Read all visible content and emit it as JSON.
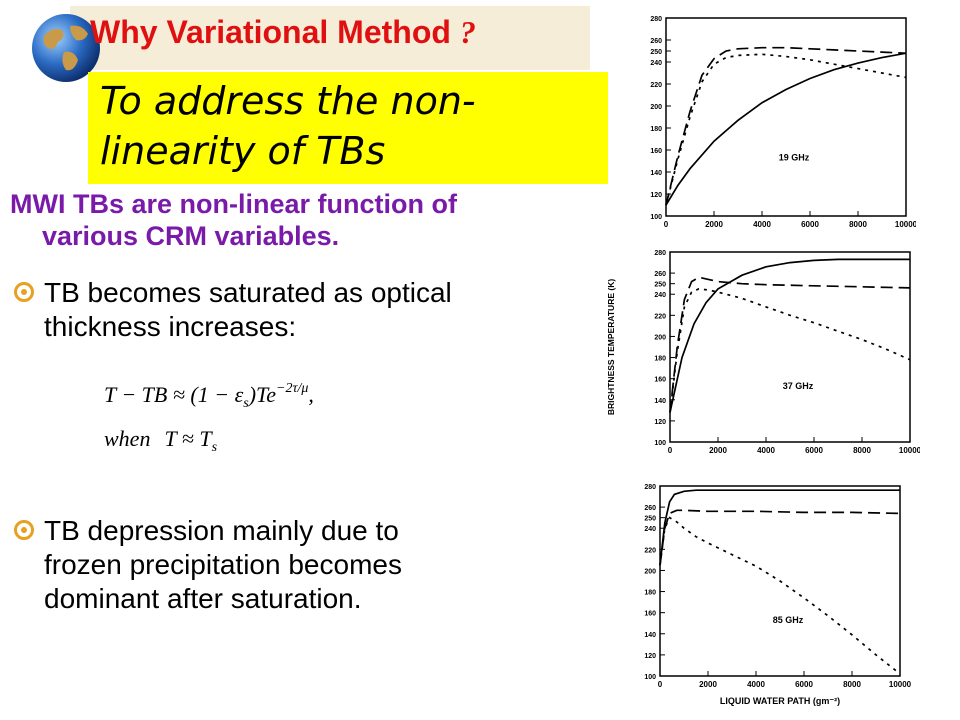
{
  "slide": {
    "title": "Why Variational Method",
    "title_q": "?",
    "callout": "To address the non-linearity of TBs",
    "subhead_line1": "MWI TBs are non-linear function of",
    "subhead_line2": "various CRM variables.",
    "bullets": [
      {
        "line1": "TB becomes saturated  as optical",
        "line2": "thickness increases:"
      },
      {
        "line1": "TB  depression mainly due to",
        "line2": "frozen precipitation becomes",
        "line3": "dominant after saturation."
      }
    ],
    "equation": {
      "line1_lhs": "T − TB ≈ (1 − ε",
      "line1_sub": "s",
      "line1_rhs": ")Te",
      "line1_exp": "−2τ/μ",
      "line1_end": ",",
      "line2_when": "when",
      "line2_expr": "T ≈ T",
      "line2_sub": "s"
    },
    "colors": {
      "title": "#e01010",
      "callout_bg": "#ffff00",
      "subhead": "#7a1aa8",
      "bullet_icon": "#e8a020"
    }
  },
  "chart_data": [
    {
      "type": "line",
      "annotation": "19 GHz",
      "x_ticks": [
        "0",
        "2000",
        "4000",
        "6000",
        "8000",
        "10000"
      ],
      "y_ticks": [
        "100",
        "120",
        "140",
        "160",
        "180",
        "200",
        "220",
        "240",
        "250",
        "260",
        "280"
      ],
      "xlim": [
        0,
        10000
      ],
      "ylim": [
        100,
        280
      ],
      "series": [
        {
          "style": "solid",
          "x": [
            0,
            500,
            1000,
            2000,
            3000,
            4000,
            5000,
            6000,
            7000,
            8000,
            9000,
            10000
          ],
          "y": [
            110,
            128,
            143,
            168,
            187,
            203,
            215,
            225,
            233,
            239,
            244,
            248
          ]
        },
        {
          "style": "long-dash",
          "x": [
            0,
            500,
            1000,
            1500,
            2000,
            2500,
            3000,
            4000,
            5000,
            6000,
            7000,
            8000,
            9000,
            10000
          ],
          "y": [
            110,
            155,
            195,
            228,
            243,
            250,
            252,
            253,
            253,
            252,
            251,
            250,
            249,
            248
          ]
        },
        {
          "style": "dotted",
          "x": [
            0,
            500,
            1000,
            1500,
            2000,
            2500,
            3000,
            4000,
            5000,
            6000,
            7000,
            8000,
            9000,
            10000
          ],
          "y": [
            110,
            152,
            190,
            222,
            238,
            244,
            246,
            247,
            245,
            242,
            238,
            234,
            230,
            226
          ]
        }
      ]
    },
    {
      "type": "line",
      "annotation": "37 GHz",
      "ylabel": "BRIGHTNESS TEMPERATURE (K)",
      "x_ticks": [
        "0",
        "2000",
        "4000",
        "6000",
        "8000",
        "10000"
      ],
      "y_ticks": [
        "100",
        "120",
        "140",
        "160",
        "180",
        "200",
        "220",
        "240",
        "250",
        "260",
        "280"
      ],
      "xlim": [
        0,
        10000
      ],
      "ylim": [
        100,
        280
      ],
      "series": [
        {
          "style": "solid",
          "x": [
            0,
            500,
            1000,
            1500,
            2000,
            3000,
            4000,
            5000,
            6000,
            7000,
            8000,
            9000,
            10000
          ],
          "y": [
            128,
            180,
            212,
            232,
            245,
            258,
            266,
            270,
            272,
            273,
            273,
            273,
            273
          ]
        },
        {
          "style": "long-dash",
          "x": [
            0,
            300,
            600,
            900,
            1200,
            1600,
            2000,
            3000,
            4000,
            6000,
            8000,
            10000
          ],
          "y": [
            128,
            190,
            235,
            252,
            256,
            254,
            252,
            250,
            249,
            248,
            247,
            246
          ]
        },
        {
          "style": "dotted",
          "x": [
            0,
            300,
            600,
            900,
            1200,
            1600,
            2000,
            3000,
            4000,
            5000,
            6000,
            7000,
            8000,
            9000,
            10000
          ],
          "y": [
            128,
            185,
            228,
            242,
            245,
            244,
            242,
            236,
            228,
            220,
            213,
            205,
            197,
            188,
            178
          ]
        }
      ]
    },
    {
      "type": "line",
      "annotation": "85 GHz",
      "xlabel": "LIQUID WATER PATH (gm⁻²)",
      "x_ticks": [
        "0",
        "2000",
        "4000",
        "6000",
        "8000",
        "10000"
      ],
      "y_ticks": [
        "100",
        "120",
        "140",
        "160",
        "180",
        "200",
        "220",
        "240",
        "250",
        "260",
        "280"
      ],
      "xlim": [
        0,
        10000
      ],
      "ylim": [
        100,
        280
      ],
      "series": [
        {
          "style": "solid",
          "x": [
            0,
            200,
            400,
            600,
            1000,
            1500,
            2000,
            3000,
            4000,
            6000,
            8000,
            10000
          ],
          "y": [
            205,
            245,
            265,
            272,
            275,
            276,
            276,
            276,
            276,
            276,
            276,
            276
          ]
        },
        {
          "style": "long-dash",
          "x": [
            0,
            200,
            400,
            700,
            1000,
            2000,
            4000,
            6000,
            8000,
            10000
          ],
          "y": [
            205,
            240,
            254,
            257,
            257,
            256,
            256,
            255,
            255,
            254
          ]
        },
        {
          "style": "dotted",
          "x": [
            0,
            200,
            400,
            700,
            1000,
            1500,
            2000,
            3000,
            4000,
            5000,
            6000,
            7000,
            8000,
            9000,
            10000
          ],
          "y": [
            205,
            240,
            250,
            246,
            240,
            232,
            226,
            215,
            204,
            190,
            174,
            157,
            139,
            120,
            102
          ]
        }
      ]
    }
  ]
}
